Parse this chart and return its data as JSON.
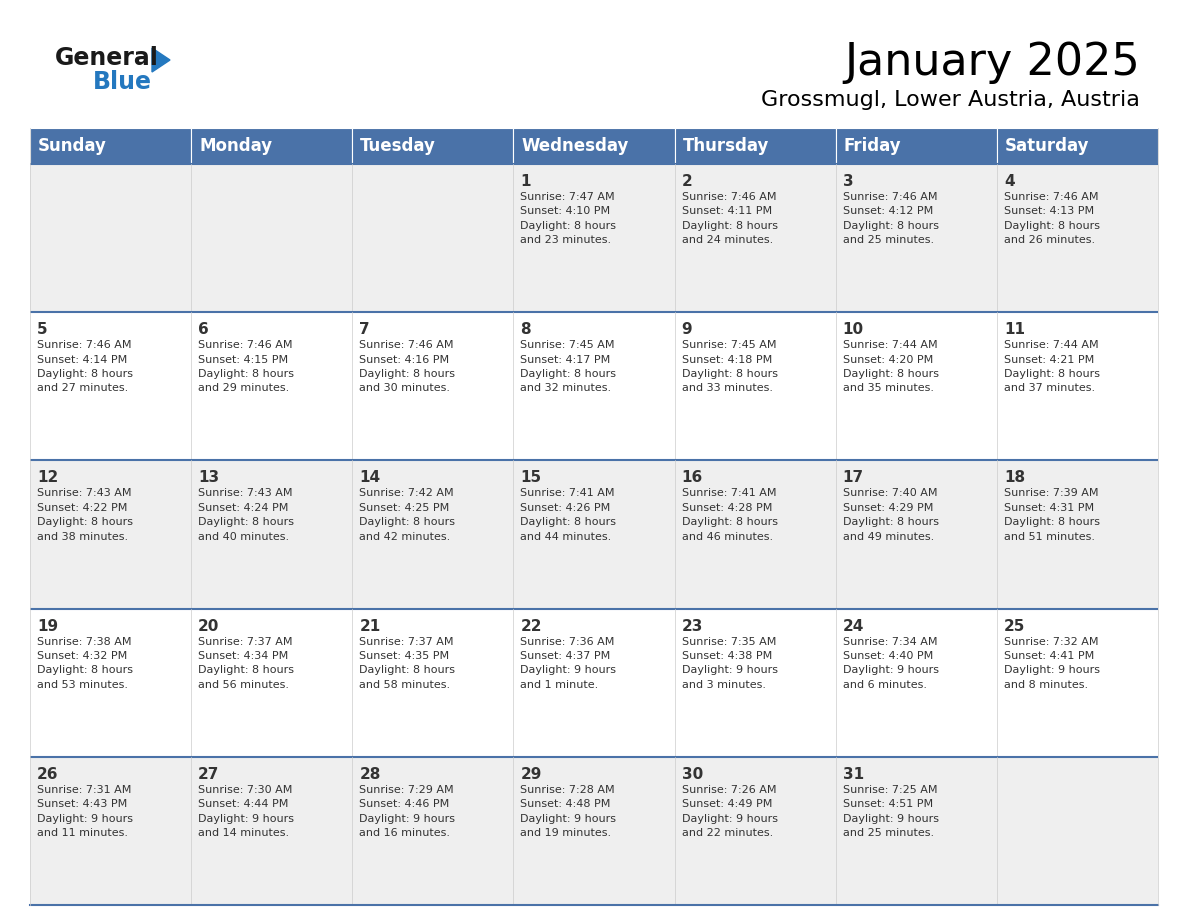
{
  "title": "January 2025",
  "subtitle": "Grossmugl, Lower Austria, Austria",
  "header_color": "#4A72A8",
  "header_text_color": "#FFFFFF",
  "cell_bg_light": "#EFEFEF",
  "cell_bg_white": "#FFFFFF",
  "row_separator_color": "#4A72A8",
  "grid_line_color": "#CCCCCC",
  "text_color": "#333333",
  "days_of_week": [
    "Sunday",
    "Monday",
    "Tuesday",
    "Wednesday",
    "Thursday",
    "Friday",
    "Saturday"
  ],
  "calendar_data": [
    [
      {
        "day": "",
        "info": ""
      },
      {
        "day": "",
        "info": ""
      },
      {
        "day": "",
        "info": ""
      },
      {
        "day": "1",
        "info": "Sunrise: 7:47 AM\nSunset: 4:10 PM\nDaylight: 8 hours\nand 23 minutes."
      },
      {
        "day": "2",
        "info": "Sunrise: 7:46 AM\nSunset: 4:11 PM\nDaylight: 8 hours\nand 24 minutes."
      },
      {
        "day": "3",
        "info": "Sunrise: 7:46 AM\nSunset: 4:12 PM\nDaylight: 8 hours\nand 25 minutes."
      },
      {
        "day": "4",
        "info": "Sunrise: 7:46 AM\nSunset: 4:13 PM\nDaylight: 8 hours\nand 26 minutes."
      }
    ],
    [
      {
        "day": "5",
        "info": "Sunrise: 7:46 AM\nSunset: 4:14 PM\nDaylight: 8 hours\nand 27 minutes."
      },
      {
        "day": "6",
        "info": "Sunrise: 7:46 AM\nSunset: 4:15 PM\nDaylight: 8 hours\nand 29 minutes."
      },
      {
        "day": "7",
        "info": "Sunrise: 7:46 AM\nSunset: 4:16 PM\nDaylight: 8 hours\nand 30 minutes."
      },
      {
        "day": "8",
        "info": "Sunrise: 7:45 AM\nSunset: 4:17 PM\nDaylight: 8 hours\nand 32 minutes."
      },
      {
        "day": "9",
        "info": "Sunrise: 7:45 AM\nSunset: 4:18 PM\nDaylight: 8 hours\nand 33 minutes."
      },
      {
        "day": "10",
        "info": "Sunrise: 7:44 AM\nSunset: 4:20 PM\nDaylight: 8 hours\nand 35 minutes."
      },
      {
        "day": "11",
        "info": "Sunrise: 7:44 AM\nSunset: 4:21 PM\nDaylight: 8 hours\nand 37 minutes."
      }
    ],
    [
      {
        "day": "12",
        "info": "Sunrise: 7:43 AM\nSunset: 4:22 PM\nDaylight: 8 hours\nand 38 minutes."
      },
      {
        "day": "13",
        "info": "Sunrise: 7:43 AM\nSunset: 4:24 PM\nDaylight: 8 hours\nand 40 minutes."
      },
      {
        "day": "14",
        "info": "Sunrise: 7:42 AM\nSunset: 4:25 PM\nDaylight: 8 hours\nand 42 minutes."
      },
      {
        "day": "15",
        "info": "Sunrise: 7:41 AM\nSunset: 4:26 PM\nDaylight: 8 hours\nand 44 minutes."
      },
      {
        "day": "16",
        "info": "Sunrise: 7:41 AM\nSunset: 4:28 PM\nDaylight: 8 hours\nand 46 minutes."
      },
      {
        "day": "17",
        "info": "Sunrise: 7:40 AM\nSunset: 4:29 PM\nDaylight: 8 hours\nand 49 minutes."
      },
      {
        "day": "18",
        "info": "Sunrise: 7:39 AM\nSunset: 4:31 PM\nDaylight: 8 hours\nand 51 minutes."
      }
    ],
    [
      {
        "day": "19",
        "info": "Sunrise: 7:38 AM\nSunset: 4:32 PM\nDaylight: 8 hours\nand 53 minutes."
      },
      {
        "day": "20",
        "info": "Sunrise: 7:37 AM\nSunset: 4:34 PM\nDaylight: 8 hours\nand 56 minutes."
      },
      {
        "day": "21",
        "info": "Sunrise: 7:37 AM\nSunset: 4:35 PM\nDaylight: 8 hours\nand 58 minutes."
      },
      {
        "day": "22",
        "info": "Sunrise: 7:36 AM\nSunset: 4:37 PM\nDaylight: 9 hours\nand 1 minute."
      },
      {
        "day": "23",
        "info": "Sunrise: 7:35 AM\nSunset: 4:38 PM\nDaylight: 9 hours\nand 3 minutes."
      },
      {
        "day": "24",
        "info": "Sunrise: 7:34 AM\nSunset: 4:40 PM\nDaylight: 9 hours\nand 6 minutes."
      },
      {
        "day": "25",
        "info": "Sunrise: 7:32 AM\nSunset: 4:41 PM\nDaylight: 9 hours\nand 8 minutes."
      }
    ],
    [
      {
        "day": "26",
        "info": "Sunrise: 7:31 AM\nSunset: 4:43 PM\nDaylight: 9 hours\nand 11 minutes."
      },
      {
        "day": "27",
        "info": "Sunrise: 7:30 AM\nSunset: 4:44 PM\nDaylight: 9 hours\nand 14 minutes."
      },
      {
        "day": "28",
        "info": "Sunrise: 7:29 AM\nSunset: 4:46 PM\nDaylight: 9 hours\nand 16 minutes."
      },
      {
        "day": "29",
        "info": "Sunrise: 7:28 AM\nSunset: 4:48 PM\nDaylight: 9 hours\nand 19 minutes."
      },
      {
        "day": "30",
        "info": "Sunrise: 7:26 AM\nSunset: 4:49 PM\nDaylight: 9 hours\nand 22 minutes."
      },
      {
        "day": "31",
        "info": "Sunrise: 7:25 AM\nSunset: 4:51 PM\nDaylight: 9 hours\nand 25 minutes."
      },
      {
        "day": "",
        "info": ""
      }
    ]
  ],
  "logo_general_color": "#1A1A1A",
  "logo_blue_color": "#2478BF",
  "logo_triangle_color": "#2478BF",
  "title_fontsize": 32,
  "subtitle_fontsize": 16,
  "header_fontsize": 12,
  "day_number_fontsize": 11,
  "info_fontsize": 8
}
